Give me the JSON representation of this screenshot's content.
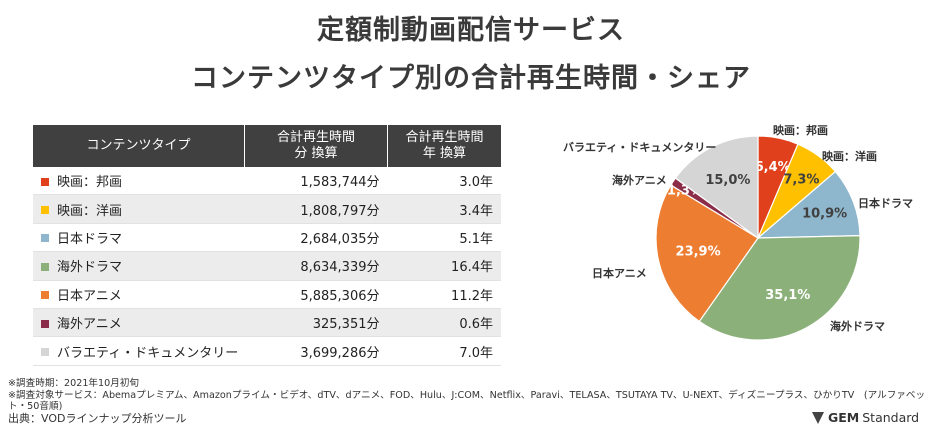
{
  "title_line1": "定額制動画配信サービス",
  "title_line2": "コンテンツタイプ別の合計再生時間・シェア",
  "table": {
    "headers": [
      "コンテンツタイプ",
      "合計再生時間\n分 換算",
      "合計再生時間\n年 換算"
    ],
    "rows": [
      {
        "category": "映画：邦画",
        "minutes": "1,583,744分",
        "years": "3.0年"
      },
      {
        "category": "映画：洋画",
        "minutes": "1,808,797分",
        "years": "3.4年"
      },
      {
        "category": "日本ドラマ",
        "minutes": "2,684,035分",
        "years": "5.1年"
      },
      {
        "category": "海外ドラマ",
        "minutes": "8,634,339分",
        "years": "16.4年"
      },
      {
        "category": "日本アニメ",
        "minutes": "5,885,306分",
        "years": "11.2年"
      },
      {
        "category": "海外アニメ",
        "minutes": "325,351分",
        "years": "0.6年"
      },
      {
        "category": "バラエティ・ドキュメンタリー",
        "minutes": "3,699,286分",
        "years": "7.0年"
      }
    ]
  },
  "chart_data": {
    "type": "pie",
    "slices": [
      {
        "label": "映画：邦画",
        "value": 6.4,
        "value_label": "6,4%",
        "color": "#e0401c",
        "value_color": "#ffffff"
      },
      {
        "label": "映画：洋画",
        "value": 7.3,
        "value_label": "7,3%",
        "color": "#ffc000",
        "value_color": "#404040"
      },
      {
        "label": "日本ドラマ",
        "value": 10.9,
        "value_label": "10,9%",
        "color": "#8eb6cd",
        "value_color": "#404040"
      },
      {
        "label": "海外ドラマ",
        "value": 35.1,
        "value_label": "35,1%",
        "color": "#8cb07a",
        "value_color": "#ffffff"
      },
      {
        "label": "日本アニメ",
        "value": 23.9,
        "value_label": "23,9%",
        "color": "#ed7d31",
        "value_color": "#ffffff"
      },
      {
        "label": "海外アニメ",
        "value": 1.3,
        "value_label": "1,3%",
        "color": "#8b2c48",
        "value_color": "#ffffff"
      },
      {
        "label": "バラエティ・ドキュメンタリー",
        "value": 15.0,
        "value_label": "15,0%",
        "color": "#d5d5d5",
        "value_color": "#404040"
      }
    ]
  },
  "notes": [
    "※調査時期：2021年10月初旬",
    "※調査対象サービス：Abemaプレミアム、Amazonプライム・ビデオ、dTV、dアニメ、FOD、Hulu、J:COM、Netflix、Paravi、TELASA、TSUTAYA TV、U-NEXT、ディズニープラス、ひかりTV　(アルファベット・50音順)"
  ],
  "source": "出典：VODラインナップ分析ツール",
  "logo_text_bold": "GEM",
  "logo_text": "Standard"
}
